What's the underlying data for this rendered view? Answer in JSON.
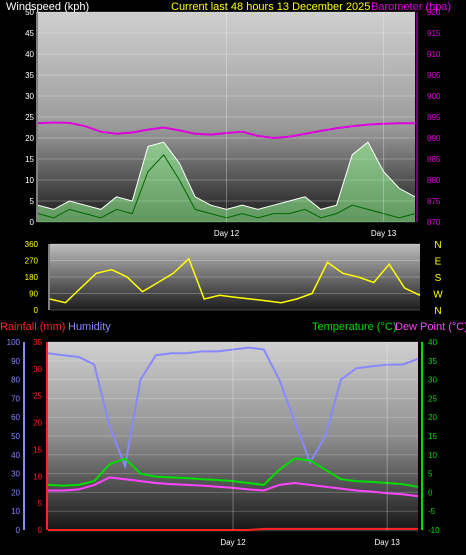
{
  "header": {
    "left_label": "Windspeed (kph)",
    "center_label": "Current last 48 hours 13 December 2025",
    "right_label": "Barometer (hpa)"
  },
  "bottom_header": {
    "rainfall_label": "Rainfall (mm)",
    "humidity_label": "Humidity",
    "temperature_label": "Temperature (°C)",
    "dewpoint_label": "Dew Point (°C)"
  },
  "colors": {
    "windspeed": "#ffffff",
    "gust_fill": "#99ff99",
    "barometer": "#dd00dd",
    "direction": "#ffff00",
    "rainfall": "#ff2222",
    "humidity": "#8888ff",
    "temperature": "#00dd00",
    "dewpoint": "#ff44ff",
    "header_yellow": "#ffff00"
  },
  "chart_data": [
    {
      "type": "line",
      "name_key": "wind",
      "x_ticks": [
        "Day 12",
        "Day 13"
      ],
      "y_left_ticks": [
        "0",
        "5",
        "10",
        "15",
        "20",
        "25",
        "30",
        "35",
        "40",
        "45",
        "50"
      ],
      "y_right_ticks": [
        "870",
        "875",
        "880",
        "885",
        "890",
        "895",
        "900",
        "905",
        "910",
        "915",
        "920"
      ],
      "ylim_left": [
        0,
        50
      ],
      "ylim_right": [
        870,
        920
      ],
      "hours": [
        0,
        2,
        4,
        6,
        8,
        10,
        12,
        14,
        16,
        18,
        20,
        22,
        24,
        26,
        28,
        30,
        32,
        34,
        36,
        38,
        40,
        42,
        44,
        46,
        48
      ],
      "windspeed": [
        2,
        1,
        3,
        2,
        1,
        3,
        2,
        12,
        16,
        10,
        3,
        2,
        1,
        2,
        1,
        2,
        2,
        3,
        1,
        2,
        4,
        3,
        2,
        1,
        2
      ],
      "gust": [
        4,
        3,
        5,
        4,
        3,
        6,
        5,
        18,
        19,
        14,
        6,
        4,
        3,
        4,
        3,
        4,
        5,
        6,
        3,
        4,
        16,
        19,
        12,
        8,
        6
      ],
      "barometer": [
        893.5,
        893.7,
        893.6,
        892.8,
        891.5,
        891.0,
        891.3,
        892.0,
        892.5,
        891.8,
        891.0,
        890.8,
        891.2,
        891.5,
        890.5,
        890.0,
        890.3,
        891.0,
        891.7,
        892.3,
        892.8,
        893.2,
        893.4,
        893.5,
        893.5
      ]
    },
    {
      "type": "line",
      "name_key": "direction",
      "y_left_ticks": [
        "0",
        "90",
        "180",
        "270",
        "360"
      ],
      "y_right_ticks": [
        "N",
        "W",
        "S",
        "E",
        "N"
      ],
      "ylim": [
        0,
        360
      ],
      "hours": [
        0,
        2,
        4,
        6,
        8,
        10,
        12,
        14,
        16,
        18,
        20,
        22,
        24,
        26,
        28,
        30,
        32,
        34,
        36,
        38,
        40,
        42,
        44,
        46,
        48
      ],
      "direction": [
        60,
        40,
        120,
        200,
        220,
        180,
        100,
        150,
        200,
        280,
        60,
        80,
        70,
        60,
        50,
        40,
        60,
        90,
        260,
        200,
        180,
        150,
        250,
        120,
        80
      ]
    },
    {
      "type": "line",
      "name_key": "climate",
      "x_ticks": [
        "Day 12",
        "Day 13"
      ],
      "rain_ticks": [
        "0",
        "5",
        "10",
        "15",
        "20",
        "25",
        "30",
        "35"
      ],
      "humidity_ticks": [
        "0",
        "10",
        "20",
        "30",
        "40",
        "50",
        "60",
        "70",
        "80",
        "90",
        "100"
      ],
      "temp_ticks": [
        "-10",
        "-5",
        "0",
        "5",
        "10",
        "15",
        "20",
        "25",
        "30",
        "35",
        "40"
      ],
      "rain_lim": [
        0,
        35
      ],
      "humidity_lim": [
        0,
        100
      ],
      "temp_lim": [
        -10,
        40
      ],
      "hours": [
        0,
        2,
        4,
        6,
        8,
        10,
        12,
        14,
        16,
        18,
        20,
        22,
        24,
        26,
        28,
        30,
        32,
        34,
        36,
        38,
        40,
        42,
        44,
        46,
        48
      ],
      "humidity": [
        94,
        93,
        92,
        88,
        55,
        34,
        80,
        93,
        94,
        94,
        95,
        95,
        96,
        97,
        96,
        80,
        58,
        36,
        50,
        80,
        86,
        87,
        88,
        88,
        91
      ],
      "temperature": [
        2.0,
        1.8,
        2.0,
        3.0,
        7.5,
        9.0,
        5.0,
        4.2,
        4.0,
        3.8,
        3.5,
        3.3,
        3.0,
        2.5,
        2.0,
        6.0,
        9.0,
        8.5,
        6.0,
        3.5,
        3.0,
        2.8,
        2.5,
        2.2,
        1.5
      ],
      "dewpoint": [
        0.5,
        0.5,
        0.8,
        2.0,
        4.0,
        3.5,
        3.0,
        2.5,
        2.2,
        2.0,
        1.8,
        1.5,
        1.2,
        0.8,
        0.5,
        2.0,
        2.5,
        2.0,
        1.5,
        1.0,
        0.5,
        0.2,
        -0.2,
        -0.5,
        -1.0
      ],
      "rainfall": [
        0,
        0,
        0,
        0,
        0,
        0,
        0,
        0,
        0,
        0,
        0,
        0,
        0,
        0,
        0.2,
        0.2,
        0.2,
        0.2,
        0.2,
        0.2,
        0.2,
        0.2,
        0.2,
        0.2,
        0.2
      ]
    }
  ]
}
